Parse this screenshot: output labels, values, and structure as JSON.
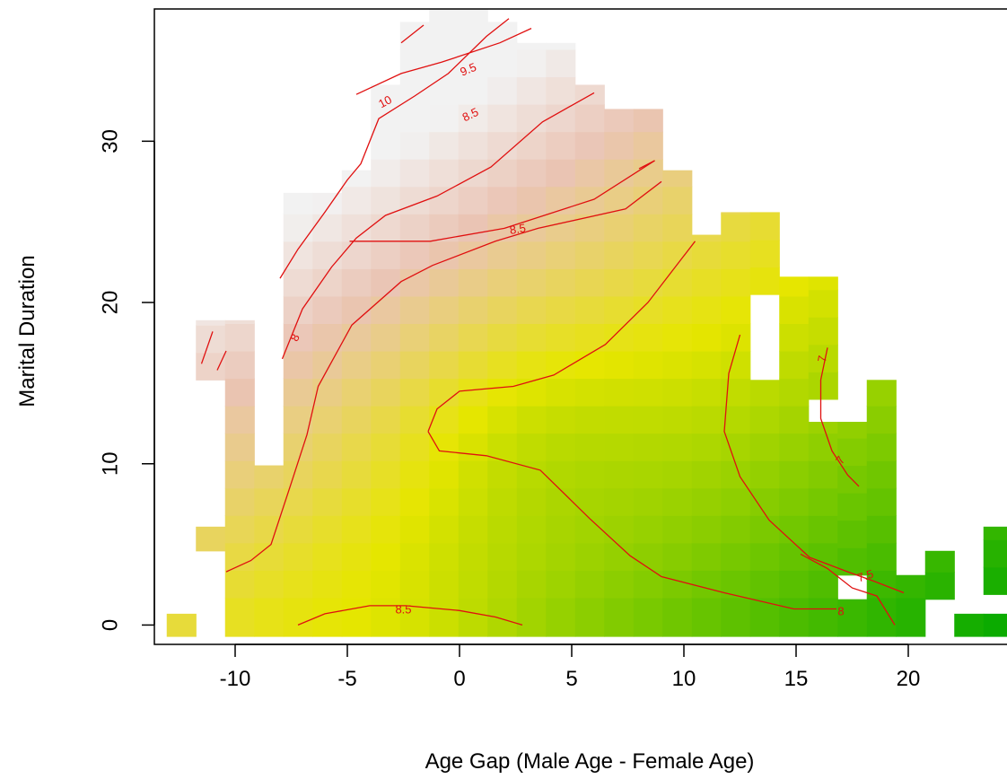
{
  "chart_data": {
    "type": "heatmap",
    "title": "",
    "xlabel": "Age Gap (Male Age - Female Age)",
    "ylabel": "Marital Duration",
    "xlim": [
      -13.6,
      24.4
    ],
    "ylim": [
      -1.2,
      38.2
    ],
    "x_ticks": [
      -10,
      -5,
      0,
      5,
      10,
      15,
      20
    ],
    "y_ticks": [
      0,
      10,
      20,
      30
    ],
    "grid": false,
    "legend": "none",
    "colors": {
      "low": "#00a800",
      "mid": "#e6e600",
      "high": "#eac4b4",
      "top": "#f2f2f2",
      "contour": "#e01010"
    },
    "cell_width": 1.3,
    "cell_height": 1.7,
    "column_extents": [
      {
        "x": -12.4,
        "y_min": 0,
        "y_max": 0.7
      },
      {
        "x": -11.1,
        "y_min": 15.2,
        "y_max": 18.9
      },
      {
        "x": -11.1,
        "y_min": 4.6,
        "y_max": 6.1
      },
      {
        "x": -9.8,
        "y_min": 0,
        "y_max": 18.9
      },
      {
        "x": -8.5,
        "y_min": 0,
        "y_max": 9.9
      },
      {
        "x": -7.2,
        "y_min": 0,
        "y_max": 26.8
      },
      {
        "x": -5.9,
        "y_min": 0,
        "y_max": 26.8
      },
      {
        "x": -4.6,
        "y_min": 0,
        "y_max": 28.2
      },
      {
        "x": -3.3,
        "y_min": 0,
        "y_max": 33.5
      },
      {
        "x": -2.0,
        "y_min": 0,
        "y_max": 37.4
      },
      {
        "x": -0.7,
        "y_min": 0,
        "y_max": 38.2
      },
      {
        "x": 0.6,
        "y_min": 0,
        "y_max": 38.2
      },
      {
        "x": 1.9,
        "y_min": 0,
        "y_max": 37.4
      },
      {
        "x": 3.2,
        "y_min": 0,
        "y_max": 36.1
      },
      {
        "x": 4.5,
        "y_min": 0,
        "y_max": 36.1
      },
      {
        "x": 5.8,
        "y_min": 0,
        "y_max": 33.5
      },
      {
        "x": 7.1,
        "y_min": 0,
        "y_max": 32.0
      },
      {
        "x": 8.4,
        "y_min": 0,
        "y_max": 32.0
      },
      {
        "x": 9.7,
        "y_min": 0,
        "y_max": 28.2
      },
      {
        "x": 11.0,
        "y_min": 0,
        "y_max": 24.2
      },
      {
        "x": 12.3,
        "y_min": 0,
        "y_max": 25.6
      },
      {
        "x": 13.6,
        "y_min": 0,
        "y_max": 15.2
      },
      {
        "x": 13.6,
        "y_min": 20.5,
        "y_max": 25.6
      },
      {
        "x": 14.9,
        "y_min": 0,
        "y_max": 21.6
      },
      {
        "x": 16.2,
        "y_min": 0,
        "y_max": 12.6
      },
      {
        "x": 16.2,
        "y_min": 14.0,
        "y_max": 21.6
      },
      {
        "x": 17.5,
        "y_min": 3.1,
        "y_max": 12.6
      },
      {
        "x": 17.5,
        "y_min": 0,
        "y_max": 1.6
      },
      {
        "x": 18.8,
        "y_min": 0,
        "y_max": 15.2
      },
      {
        "x": 20.1,
        "y_min": 0,
        "y_max": 3.1
      },
      {
        "x": 21.4,
        "y_min": 1.6,
        "y_max": 4.6
      },
      {
        "x": 22.7,
        "y_min": 0,
        "y_max": 0.7
      },
      {
        "x": 24.0,
        "y_min": 0,
        "y_max": 0.7
      },
      {
        "x": 24.0,
        "y_min": 1.9,
        "y_max": 6.1
      }
    ],
    "contours": [
      {
        "level": "10",
        "points": [
          [
            -2.6,
            36.1
          ],
          [
            -1.6,
            37.2
          ]
        ]
      },
      {
        "level": "10",
        "points": [
          [
            -11.5,
            16.2
          ],
          [
            -11.0,
            18.2
          ]
        ]
      },
      {
        "level": "10",
        "points": [
          [
            -10.8,
            15.8
          ],
          [
            -10.4,
            17.0
          ]
        ]
      },
      {
        "level": "9",
        "points": [
          [
            -8.0,
            21.5
          ],
          [
            -7.2,
            23.3
          ],
          [
            -6.0,
            25.6
          ],
          [
            -5.0,
            27.6
          ],
          [
            -4.4,
            28.6
          ],
          [
            -3.6,
            31.4
          ],
          [
            -2.0,
            32.8
          ],
          [
            -0.5,
            34.2
          ],
          [
            1.2,
            36.5
          ],
          [
            2.2,
            37.6
          ]
        ]
      },
      {
        "level": "8.5",
        "points": [
          [
            -7.9,
            16.5
          ],
          [
            -7.0,
            19.6
          ],
          [
            -5.7,
            22.2
          ],
          [
            -4.6,
            24.0
          ],
          [
            -3.3,
            25.4
          ],
          [
            -1.0,
            26.6
          ],
          [
            1.4,
            28.4
          ],
          [
            3.7,
            31.2
          ],
          [
            6.0,
            33.0
          ]
        ]
      },
      {
        "level": "8.5",
        "points": [
          [
            -4.6,
            32.9
          ],
          [
            -2.6,
            34.2
          ],
          [
            -0.8,
            34.9
          ],
          [
            1.8,
            36.1
          ],
          [
            3.2,
            37.0
          ]
        ]
      },
      {
        "level": "8.5",
        "points": [
          [
            -4.9,
            23.8
          ],
          [
            -1.3,
            23.8
          ],
          [
            2.0,
            24.6
          ],
          [
            6.0,
            26.4
          ],
          [
            8.7,
            28.8
          ]
        ]
      },
      {
        "level": "8",
        "points": [
          [
            -10.4,
            3.3
          ],
          [
            -9.3,
            4.0
          ],
          [
            -8.4,
            5.0
          ],
          [
            -7.5,
            8.8
          ],
          [
            -6.8,
            11.8
          ],
          [
            -6.3,
            14.8
          ],
          [
            -4.8,
            18.6
          ],
          [
            -2.6,
            21.3
          ],
          [
            -1.2,
            22.3
          ],
          [
            1.6,
            23.8
          ],
          [
            3.5,
            24.6
          ],
          [
            7.4,
            25.8
          ],
          [
            9.0,
            27.5
          ]
        ]
      },
      {
        "level": "8",
        "points": [
          [
            8.0,
            28.3
          ],
          [
            8.7,
            28.8
          ]
        ]
      },
      {
        "level": "8",
        "points": [
          [
            -1.4,
            12.0
          ],
          [
            -1.0,
            13.4
          ],
          [
            0.0,
            14.5
          ],
          [
            2.4,
            14.8
          ],
          [
            4.2,
            15.5
          ],
          [
            6.5,
            17.4
          ],
          [
            8.4,
            20.0
          ],
          [
            10.5,
            23.8
          ]
        ]
      },
      {
        "level": "8",
        "points": [
          [
            -1.4,
            12.0
          ],
          [
            -0.9,
            10.8
          ],
          [
            1.2,
            10.5
          ],
          [
            3.6,
            9.6
          ],
          [
            5.8,
            6.6
          ],
          [
            7.6,
            4.3
          ],
          [
            9.0,
            3.0
          ],
          [
            11.8,
            2.0
          ],
          [
            14.9,
            1.0
          ],
          [
            16.8,
            1.0
          ]
        ]
      },
      {
        "level": "7.5",
        "points": [
          [
            12.5,
            18.0
          ],
          [
            12.0,
            15.6
          ],
          [
            11.8,
            12.0
          ],
          [
            12.5,
            9.2
          ],
          [
            13.8,
            6.5
          ],
          [
            15.6,
            4.2
          ],
          [
            17.3,
            3.3
          ],
          [
            18.5,
            2.7
          ],
          [
            19.8,
            2.0
          ]
        ]
      },
      {
        "level": "7.5",
        "points": [
          [
            15.2,
            4.4
          ],
          [
            16.4,
            3.5
          ],
          [
            17.5,
            2.3
          ],
          [
            18.6,
            1.8
          ],
          [
            19.4,
            0.0
          ]
        ]
      },
      {
        "level": "7",
        "points": [
          [
            16.4,
            17.2
          ],
          [
            16.1,
            15.2
          ],
          [
            16.1,
            12.8
          ],
          [
            16.6,
            10.8
          ],
          [
            17.3,
            9.3
          ],
          [
            17.8,
            8.6
          ]
        ]
      },
      {
        "level": "8.5",
        "points": [
          [
            -7.2,
            0.0
          ],
          [
            -6.0,
            0.7
          ],
          [
            -4.0,
            1.2
          ],
          [
            -2.4,
            1.2
          ],
          [
            0.0,
            0.9
          ],
          [
            1.6,
            0.5
          ],
          [
            2.8,
            0.0
          ]
        ]
      }
    ],
    "contour_labels": [
      {
        "text": "10",
        "x": -3.3,
        "y": 32.4,
        "angle": -28
      },
      {
        "text": "9.5",
        "x": 0.4,
        "y": 34.4,
        "angle": -22
      },
      {
        "text": "8.5",
        "x": 0.5,
        "y": 31.6,
        "angle": -26
      },
      {
        "text": "8.5",
        "x": 2.6,
        "y": 24.5,
        "angle": -9
      },
      {
        "text": "8",
        "x": -7.3,
        "y": 17.8,
        "angle": -64
      },
      {
        "text": "7",
        "x": 16.2,
        "y": 16.5,
        "angle": -80
      },
      {
        "text": "7",
        "x": 17.0,
        "y": 10.2,
        "angle": -55
      },
      {
        "text": "7.5",
        "x": 18.1,
        "y": 3.0,
        "angle": -18
      },
      {
        "text": "8",
        "x": 17.0,
        "y": 0.8,
        "angle": 0
      },
      {
        "text": "8.5",
        "x": -2.5,
        "y": 0.9,
        "angle": 0
      }
    ]
  }
}
